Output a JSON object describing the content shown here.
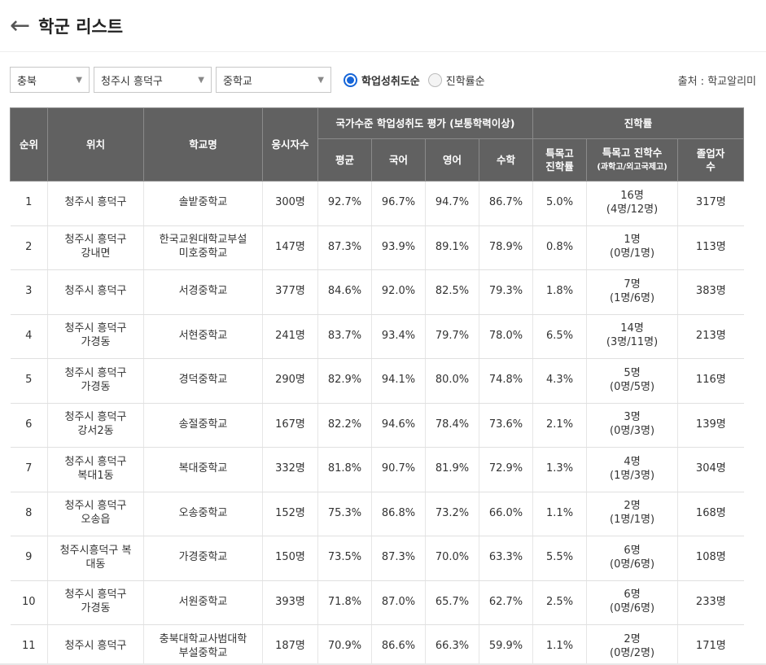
{
  "header": {
    "back_icon": "←",
    "title": "학군 리스트"
  },
  "filters": {
    "region": "충북",
    "district": "청주시 흥덕구",
    "school_type": "중학교",
    "sort_options": [
      {
        "label": "학업성취도순",
        "checked": true
      },
      {
        "label": "진학률순",
        "checked": false
      }
    ],
    "source": "출처 : 학교알리미"
  },
  "table": {
    "headers": {
      "rank": "순위",
      "location": "위치",
      "school": "학교명",
      "examinees": "응시자수",
      "achievement_group": "국가수준 학업성취도 평가 (보통학력이상)",
      "avg": "평균",
      "korean": "국어",
      "english": "영어",
      "math": "수학",
      "advancement_group": "진학률",
      "special_rate_1": "특목고",
      "special_rate_2": "진학률",
      "special_count_1": "특목고 진학수",
      "special_count_2": "(과학고/외고국제고)",
      "graduates_1": "졸업자",
      "graduates_2": "수"
    },
    "rows": [
      {
        "rank": "1",
        "loc1": "청주시 흥덕구",
        "loc2": "",
        "school1": "솔밭중학교",
        "school2": "",
        "examinees": "300명",
        "avg": "92.7%",
        "korean": "96.7%",
        "english": "94.7%",
        "math": "86.7%",
        "special_rate": "5.0%",
        "sc1": "16명",
        "sc2": "(4명/12명)",
        "graduates": "317명"
      },
      {
        "rank": "2",
        "loc1": "청주시 흥덕구",
        "loc2": "강내면",
        "school1": "한국교원대학교부설",
        "school2": "미호중학교",
        "examinees": "147명",
        "avg": "87.3%",
        "korean": "93.9%",
        "english": "89.1%",
        "math": "78.9%",
        "special_rate": "0.8%",
        "sc1": "1명",
        "sc2": "(0명/1명)",
        "graduates": "113명"
      },
      {
        "rank": "3",
        "loc1": "청주시 흥덕구",
        "loc2": "",
        "school1": "서경중학교",
        "school2": "",
        "examinees": "377명",
        "avg": "84.6%",
        "korean": "92.0%",
        "english": "82.5%",
        "math": "79.3%",
        "special_rate": "1.8%",
        "sc1": "7명",
        "sc2": "(1명/6명)",
        "graduates": "383명"
      },
      {
        "rank": "4",
        "loc1": "청주시 흥덕구",
        "loc2": "가경동",
        "school1": "서현중학교",
        "school2": "",
        "examinees": "241명",
        "avg": "83.7%",
        "korean": "93.4%",
        "english": "79.7%",
        "math": "78.0%",
        "special_rate": "6.5%",
        "sc1": "14명",
        "sc2": "(3명/11명)",
        "graduates": "213명"
      },
      {
        "rank": "5",
        "loc1": "청주시 흥덕구",
        "loc2": "가경동",
        "school1": "경덕중학교",
        "school2": "",
        "examinees": "290명",
        "avg": "82.9%",
        "korean": "94.1%",
        "english": "80.0%",
        "math": "74.8%",
        "special_rate": "4.3%",
        "sc1": "5명",
        "sc2": "(0명/5명)",
        "graduates": "116명"
      },
      {
        "rank": "6",
        "loc1": "청주시 흥덕구",
        "loc2": "강서2동",
        "school1": "송절중학교",
        "school2": "",
        "examinees": "167명",
        "avg": "82.2%",
        "korean": "94.6%",
        "english": "78.4%",
        "math": "73.6%",
        "special_rate": "2.1%",
        "sc1": "3명",
        "sc2": "(0명/3명)",
        "graduates": "139명"
      },
      {
        "rank": "7",
        "loc1": "청주시 흥덕구",
        "loc2": "복대1동",
        "school1": "복대중학교",
        "school2": "",
        "examinees": "332명",
        "avg": "81.8%",
        "korean": "90.7%",
        "english": "81.9%",
        "math": "72.9%",
        "special_rate": "1.3%",
        "sc1": "4명",
        "sc2": "(1명/3명)",
        "graduates": "304명"
      },
      {
        "rank": "8",
        "loc1": "청주시 흥덕구",
        "loc2": "오송읍",
        "school1": "오송중학교",
        "school2": "",
        "examinees": "152명",
        "avg": "75.3%",
        "korean": "86.8%",
        "english": "73.2%",
        "math": "66.0%",
        "special_rate": "1.1%",
        "sc1": "2명",
        "sc2": "(1명/1명)",
        "graduates": "168명"
      },
      {
        "rank": "9",
        "loc1": "청주시흥덕구 복",
        "loc2": "대동",
        "school1": "가경중학교",
        "school2": "",
        "examinees": "150명",
        "avg": "73.5%",
        "korean": "87.3%",
        "english": "70.0%",
        "math": "63.3%",
        "special_rate": "5.5%",
        "sc1": "6명",
        "sc2": "(0명/6명)",
        "graduates": "108명"
      },
      {
        "rank": "10",
        "loc1": "청주시 흥덕구",
        "loc2": "가경동",
        "school1": "서원중학교",
        "school2": "",
        "examinees": "393명",
        "avg": "71.8%",
        "korean": "87.0%",
        "english": "65.7%",
        "math": "62.7%",
        "special_rate": "2.5%",
        "sc1": "6명",
        "sc2": "(0명/6명)",
        "graduates": "233명"
      },
      {
        "rank": "11",
        "loc1": "청주시 흥덕구",
        "loc2": "",
        "school1": "충북대학교사범대학",
        "school2": "부설중학교",
        "examinees": "187명",
        "avg": "70.9%",
        "korean": "86.6%",
        "english": "66.3%",
        "math": "59.9%",
        "special_rate": "1.1%",
        "sc1": "2명",
        "sc2": "(0명/2명)",
        "graduates": "171명"
      }
    ]
  }
}
